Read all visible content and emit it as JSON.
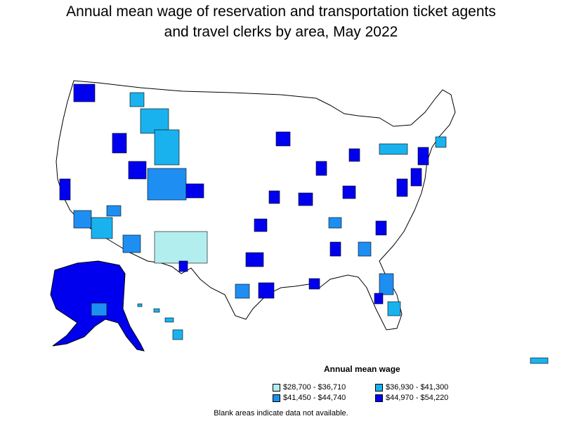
{
  "title": {
    "line1": "Annual mean wage of reservation and transportation ticket agents",
    "line2": "and travel clerks by area, May 2022"
  },
  "legend": {
    "title": "Annual mean wage",
    "items": [
      {
        "label": "$28,700 - $36,710",
        "color": "#b2eeee"
      },
      {
        "label": "$36,930 - $41,300",
        "color": "#1ab2ee"
      },
      {
        "label": "$41,450 - $44,740",
        "color": "#1e8ef2"
      },
      {
        "label": "$44,970 - $54,220",
        "color": "#0000ee"
      }
    ]
  },
  "footnote": "Blank areas indicate data not available.",
  "colors": {
    "blank": "#ffffff",
    "outline": "#000000"
  }
}
